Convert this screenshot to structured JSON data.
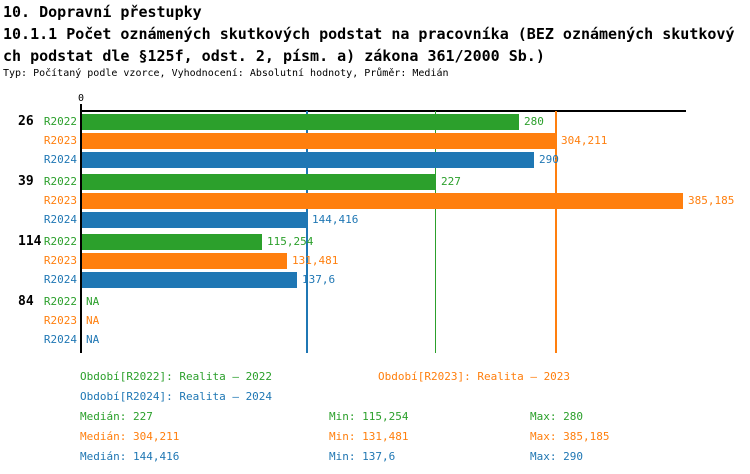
{
  "header": {
    "line1": "10. Dopravní přestupky",
    "line2": "10.1.1 Počet oznámených skutkových podstat na pracovníka (BEZ oznámených skutkový",
    "line3": "ch podstat dle §125f, odst. 2, písm. a) zákona 361/2000 Sb.)",
    "meta": "Typ: Počítaný podle vzorce, Vyhodnocení: Absolutní hodnoty, Průměr: Medián"
  },
  "colors": {
    "r2022_green": "#2ca02c",
    "r2023_orange": "#ff7f0e",
    "r2024_blue": "#1f77b4",
    "axis_black": "#000000",
    "background": "#ffffff"
  },
  "chart_data": {
    "type": "bar",
    "orientation": "horizontal",
    "title": "10.1.1 Počet oznámených skutkových podstat na pracovníka (BEZ oznámených skutkových podstat dle §125f, odst. 2, písm. a) zákona 361/2000 Sb.)",
    "xlabel": "",
    "ylabel": "",
    "axis": {
      "min": 0,
      "max": 388,
      "zero_label": "0",
      "grid": false
    },
    "series_meta": [
      {
        "name": "R2022",
        "color": "#2ca02c"
      },
      {
        "name": "R2023",
        "color": "#ff7f0e"
      },
      {
        "name": "R2024",
        "color": "#1f77b4"
      }
    ],
    "categories": [
      "26",
      "39",
      "114",
      "84"
    ],
    "groups": [
      {
        "label": "26",
        "bars": [
          {
            "series": "R2022",
            "value": 280,
            "display": "280"
          },
          {
            "series": "R2023",
            "value": 304.211,
            "display": "304,211"
          },
          {
            "series": "R2024",
            "value": 290,
            "display": "290"
          }
        ]
      },
      {
        "label": "39",
        "bars": [
          {
            "series": "R2022",
            "value": 227,
            "display": "227"
          },
          {
            "series": "R2023",
            "value": 385.185,
            "display": "385,185"
          },
          {
            "series": "R2024",
            "value": 144.416,
            "display": "144,416"
          }
        ]
      },
      {
        "label": "114",
        "bars": [
          {
            "series": "R2022",
            "value": 115.254,
            "display": "115,254"
          },
          {
            "series": "R2023",
            "value": 131.481,
            "display": "131,481"
          },
          {
            "series": "R2024",
            "value": 137.6,
            "display": "137,6"
          }
        ]
      },
      {
        "label": "84",
        "bars": [
          {
            "series": "R2022",
            "value": null,
            "display": "NA"
          },
          {
            "series": "R2023",
            "value": null,
            "display": "NA"
          },
          {
            "series": "R2024",
            "value": null,
            "display": "NA"
          }
        ]
      }
    ],
    "median_lines": [
      {
        "series": "R2024",
        "value": 144.416,
        "color": "#1f77b4"
      },
      {
        "series": "R2022",
        "value": 227,
        "color": "#2ca02c"
      },
      {
        "series": "R2023",
        "value": 304.211,
        "color": "#ff7f0e"
      }
    ]
  },
  "legend": {
    "items": [
      {
        "label": "Období[R2022]: Realita – 2022",
        "color": "#2ca02c"
      },
      {
        "label": "Období[R2023]: Realita – 2023",
        "color": "#ff7f0e"
      },
      {
        "label": "Období[R2024]: Realita – 2024",
        "color": "#1f77b4"
      }
    ]
  },
  "stats": {
    "rows": [
      {
        "series": "R2022",
        "color": "#2ca02c",
        "median": "Medián: 227",
        "min": "Min: 115,254",
        "max": "Max: 280"
      },
      {
        "series": "R2023",
        "color": "#ff7f0e",
        "median": "Medián: 304,211",
        "min": "Min: 131,481",
        "max": "Max: 385,185"
      },
      {
        "series": "R2024",
        "color": "#1f77b4",
        "median": "Medián: 144,416",
        "min": "Min: 137,6",
        "max": "Max: 290"
      }
    ]
  }
}
